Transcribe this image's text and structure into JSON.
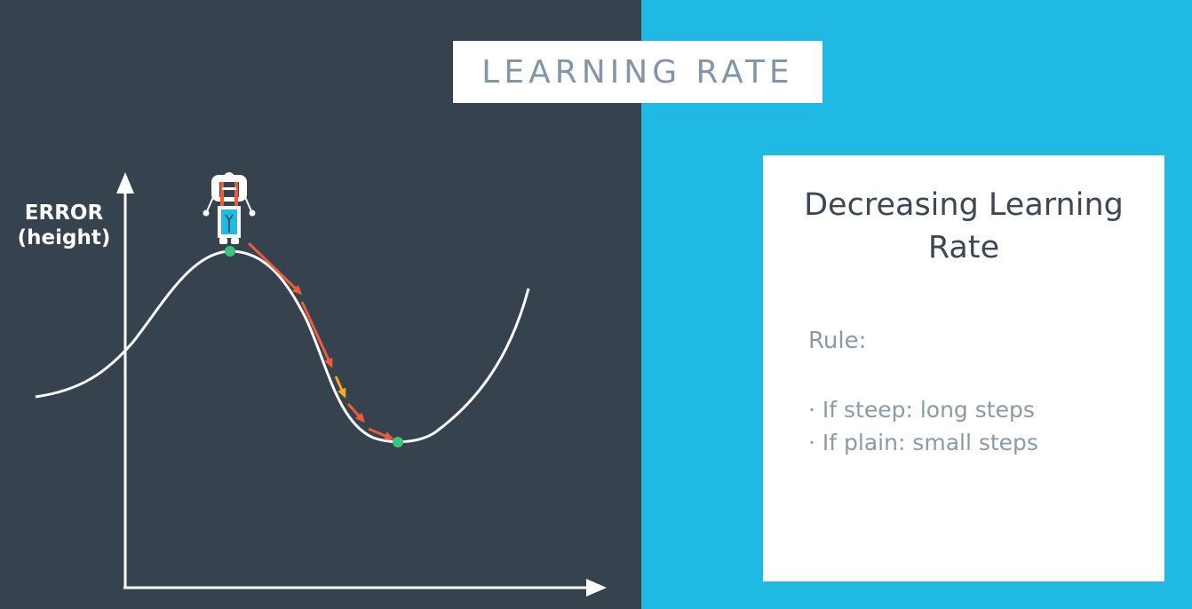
{
  "title": "LEARNING RATE",
  "axis": {
    "y_label_line1": "ERROR",
    "y_label_line2": "(height)"
  },
  "card": {
    "title_line1": "Decreasing Learning",
    "title_line2": "Rate",
    "rule_label": "Rule:",
    "rules": [
      "· If steep: long steps",
      "· If plain: small steps"
    ]
  },
  "colors": {
    "left_background": "#36434f",
    "right_background": "#1fb9e3",
    "curve": "#ffffff",
    "step_arrow": "#f05a3a",
    "small_step_arrow": "#f5a623",
    "point": "#3cc47c"
  },
  "icons": [
    "robot-icon"
  ]
}
